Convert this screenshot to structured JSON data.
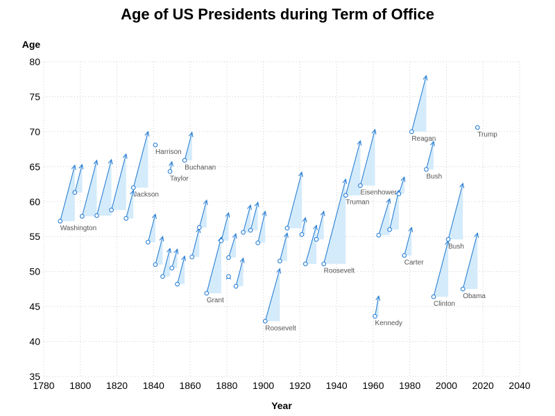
{
  "chart_data": {
    "type": "scatter",
    "title": "Age of US Presidents during Term of Office",
    "xlabel": "Year",
    "ylabel": "Age",
    "xlim": [
      1780,
      2040
    ],
    "ylim": [
      35,
      80
    ],
    "x_ticks": [
      1780,
      1800,
      1820,
      1840,
      1860,
      1880,
      1900,
      1920,
      1940,
      1960,
      1980,
      2000,
      2020,
      2040
    ],
    "y_ticks": [
      35,
      40,
      45,
      50,
      55,
      60,
      65,
      70,
      75,
      80
    ],
    "grid": true,
    "colors": {
      "arrow": "#2a7fd4",
      "fill": "#d4ebfb",
      "label": "#555555",
      "grid": "#cccccc"
    },
    "presidents": [
      {
        "start": 1789,
        "end": 1797,
        "age_start": 57.2,
        "age_end": 65.2,
        "label": "Washington"
      },
      {
        "start": 1797,
        "end": 1801,
        "age_start": 61.3,
        "age_end": 65.3,
        "label": ""
      },
      {
        "start": 1801,
        "end": 1809,
        "age_start": 57.9,
        "age_end": 65.9,
        "label": ""
      },
      {
        "start": 1809,
        "end": 1817,
        "age_start": 58.0,
        "age_end": 66.0,
        "label": ""
      },
      {
        "start": 1817,
        "end": 1825,
        "age_start": 58.8,
        "age_end": 66.8,
        "label": ""
      },
      {
        "start": 1825,
        "end": 1829,
        "age_start": 57.6,
        "age_end": 61.6,
        "label": ""
      },
      {
        "start": 1829,
        "end": 1837,
        "age_start": 62.0,
        "age_end": 70.0,
        "label": "Jackson"
      },
      {
        "start": 1837,
        "end": 1841,
        "age_start": 54.2,
        "age_end": 58.2,
        "label": ""
      },
      {
        "start": 1841,
        "end": 1841,
        "age_start": 68.1,
        "age_end": 68.1,
        "label": "Harrison"
      },
      {
        "start": 1841,
        "end": 1845,
        "age_start": 51.0,
        "age_end": 55.0,
        "label": ""
      },
      {
        "start": 1845,
        "end": 1849,
        "age_start": 49.3,
        "age_end": 53.3,
        "label": ""
      },
      {
        "start": 1849,
        "end": 1850,
        "age_start": 64.3,
        "age_end": 65.7,
        "label": "Taylor"
      },
      {
        "start": 1850,
        "end": 1853,
        "age_start": 50.5,
        "age_end": 53.2,
        "label": ""
      },
      {
        "start": 1853,
        "end": 1857,
        "age_start": 48.2,
        "age_end": 52.2,
        "label": ""
      },
      {
        "start": 1857,
        "end": 1861,
        "age_start": 65.9,
        "age_end": 69.9,
        "label": "Buchanan"
      },
      {
        "start": 1861,
        "end": 1865,
        "age_start": 52.1,
        "age_end": 56.2,
        "label": ""
      },
      {
        "start": 1865,
        "end": 1869,
        "age_start": 56.3,
        "age_end": 60.2,
        "label": ""
      },
      {
        "start": 1869,
        "end": 1877,
        "age_start": 46.9,
        "age_end": 54.9,
        "label": "Grant"
      },
      {
        "start": 1877,
        "end": 1881,
        "age_start": 54.4,
        "age_end": 58.4,
        "label": ""
      },
      {
        "start": 1881,
        "end": 1881,
        "age_start": 49.3,
        "age_end": 49.5,
        "label": ""
      },
      {
        "start": 1881,
        "end": 1885,
        "age_start": 52.0,
        "age_end": 55.4,
        "label": ""
      },
      {
        "start": 1885,
        "end": 1889,
        "age_start": 47.9,
        "age_end": 51.9,
        "label": ""
      },
      {
        "start": 1889,
        "end": 1893,
        "age_start": 55.6,
        "age_end": 59.5,
        "label": ""
      },
      {
        "start": 1893,
        "end": 1897,
        "age_start": 55.9,
        "age_end": 59.9,
        "label": ""
      },
      {
        "start": 1897,
        "end": 1901,
        "age_start": 54.1,
        "age_end": 58.6,
        "label": ""
      },
      {
        "start": 1901,
        "end": 1909,
        "age_start": 42.9,
        "age_end": 50.4,
        "label": "Roosevelt"
      },
      {
        "start": 1909,
        "end": 1913,
        "age_start": 51.5,
        "age_end": 55.5,
        "label": ""
      },
      {
        "start": 1913,
        "end": 1921,
        "age_start": 56.2,
        "age_end": 64.2,
        "label": ""
      },
      {
        "start": 1921,
        "end": 1923,
        "age_start": 55.3,
        "age_end": 57.7,
        "label": ""
      },
      {
        "start": 1923,
        "end": 1929,
        "age_start": 51.1,
        "age_end": 56.6,
        "label": ""
      },
      {
        "start": 1929,
        "end": 1933,
        "age_start": 54.6,
        "age_end": 58.6,
        "label": ""
      },
      {
        "start": 1933,
        "end": 1945,
        "age_start": 51.1,
        "age_end": 63.2,
        "label": "Roosevelt"
      },
      {
        "start": 1945,
        "end": 1953,
        "age_start": 60.9,
        "age_end": 68.7,
        "label": "Truman"
      },
      {
        "start": 1953,
        "end": 1961,
        "age_start": 62.3,
        "age_end": 70.3,
        "label": "Eisenhower"
      },
      {
        "start": 1961,
        "end": 1963,
        "age_start": 43.6,
        "age_end": 46.5,
        "label": "Kennedy"
      },
      {
        "start": 1963,
        "end": 1969,
        "age_start": 55.2,
        "age_end": 60.4,
        "label": ""
      },
      {
        "start": 1969,
        "end": 1974,
        "age_start": 56.0,
        "age_end": 61.6,
        "label": ""
      },
      {
        "start": 1974,
        "end": 1977,
        "age_start": 61.1,
        "age_end": 63.5,
        "label": ""
      },
      {
        "start": 1977,
        "end": 1981,
        "age_start": 52.3,
        "age_end": 56.3,
        "label": "Carter"
      },
      {
        "start": 1981,
        "end": 1989,
        "age_start": 70.0,
        "age_end": 78.0,
        "label": "Reagan"
      },
      {
        "start": 1989,
        "end": 1993,
        "age_start": 64.6,
        "age_end": 68.6,
        "label": "Bush"
      },
      {
        "start": 1993,
        "end": 2001,
        "age_start": 46.4,
        "age_end": 54.4,
        "label": "Clinton"
      },
      {
        "start": 2001,
        "end": 2009,
        "age_start": 54.6,
        "age_end": 62.6,
        "label": "Bush"
      },
      {
        "start": 2009,
        "end": 2017,
        "age_start": 47.5,
        "age_end": 55.5,
        "label": "Obama"
      },
      {
        "start": 2017,
        "end": 2017,
        "age_start": 70.6,
        "age_end": 70.6,
        "label": "Trump"
      }
    ]
  }
}
